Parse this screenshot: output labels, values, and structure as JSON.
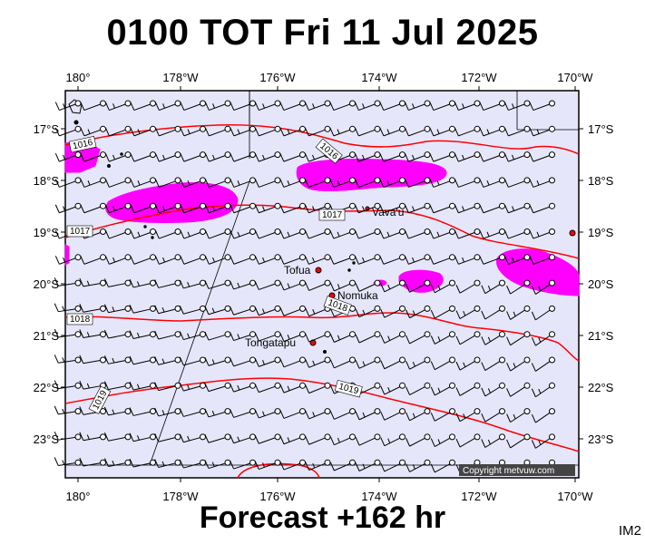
{
  "title": "0100 TOT Fri 11 Jul 2025",
  "footer": "Forecast +162 hr",
  "image_id": "IM2",
  "copyright": "Copyright metvuw.com",
  "colors": {
    "background": "#e6e6fb",
    "rain": "#ff00ff",
    "isobar": "#ff0000",
    "land": "#000000"
  },
  "longitude_labels": [
    "180°",
    "178°W",
    "176°W",
    "174°W",
    "172°W",
    "170°W"
  ],
  "latitude_labels": [
    "17°S",
    "18°S",
    "19°S",
    "20°S",
    "21°S",
    "22°S",
    "23°S"
  ],
  "places": [
    {
      "name": "Vava'u"
    },
    {
      "name": "Tofua"
    },
    {
      "name": "Nomuka"
    },
    {
      "name": "Tongatapu"
    }
  ],
  "isobar_labels": [
    "1016",
    "1016",
    "1017",
    "1017",
    "1018",
    "1018",
    "1019",
    "1019"
  ],
  "wind_field": "westerly wind barbs (light 10–15 kt) across the domain"
}
